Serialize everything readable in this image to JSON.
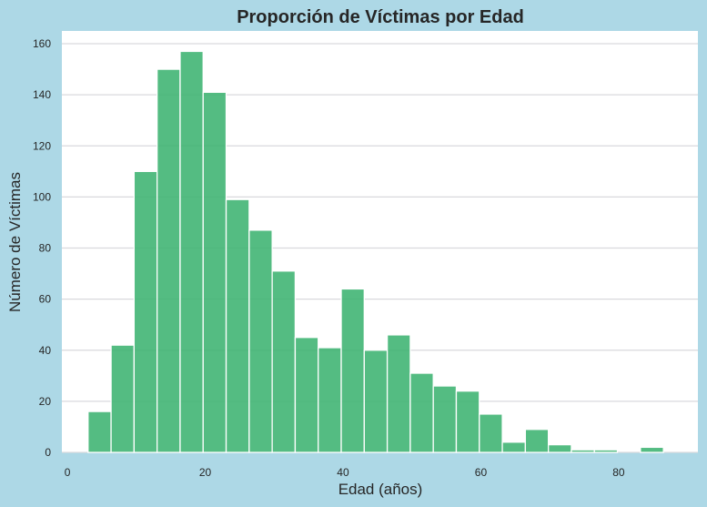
{
  "chart_data": {
    "type": "bar",
    "title": "Proporción de Víctimas por Edad",
    "xlabel": "Edad (años)",
    "ylabel": "Número de Víctimas",
    "xlim": [
      -0.8,
      91.5
    ],
    "ylim": [
      0,
      165
    ],
    "xticks": [
      0,
      20,
      40,
      60,
      80
    ],
    "yticks": [
      0,
      20,
      40,
      60,
      80,
      100,
      120,
      140,
      160
    ],
    "grid": "y",
    "bar_color": "#3cb371",
    "background": "#add8e6",
    "plot_background": "#ffffff",
    "bin_start": 3,
    "bin_width": 3.34,
    "values": [
      16,
      42,
      110,
      150,
      157,
      141,
      99,
      87,
      71,
      45,
      41,
      64,
      40,
      46,
      31,
      26,
      24,
      15,
      4,
      9,
      3,
      1,
      1,
      0,
      2
    ]
  }
}
